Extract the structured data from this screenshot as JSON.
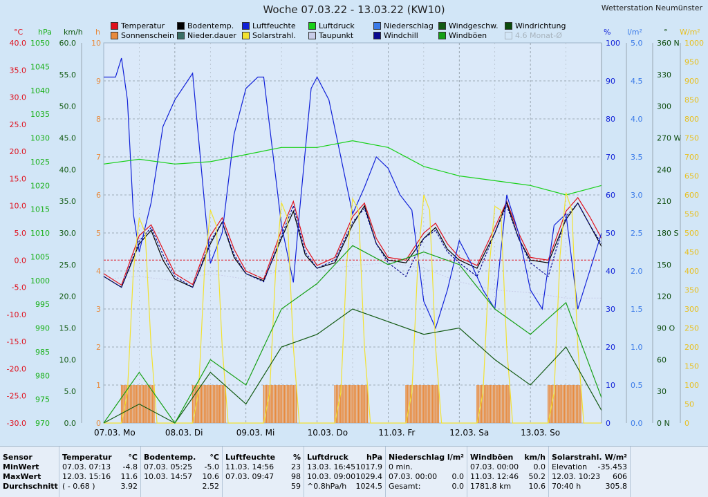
{
  "header": {
    "title": "Woche 07.03.22 - 13.03.22 (KW10)",
    "station": "Wetterstation Neumünster"
  },
  "colors": {
    "temperatur": "#e0101c",
    "sonnenschein": "#e88a3c",
    "bodentemp": "#000000",
    "niederdauer": "#3a6f66",
    "luftfeuchte": "#1020d8",
    "solarstrahl": "#f2e230",
    "luftdruck": "#18d018",
    "taupunkt": "#c8cce8",
    "niederschlag": "#3a7ae8",
    "windchill": "#0a0a90",
    "windgeschw": "#125a12",
    "windboeen": "#16a016",
    "windrichtung": "#0b4a0b"
  },
  "legend": [
    {
      "label": "Temperatur",
      "color": "#e0101c",
      "enabled": true
    },
    {
      "label": "Bodentemp.",
      "color": "#000000",
      "enabled": true
    },
    {
      "label": "Luftfeuchte",
      "color": "#1020d8",
      "enabled": true
    },
    {
      "label": "Luftdruck",
      "color": "#18d018",
      "enabled": true
    },
    {
      "label": "Niederschlag",
      "color": "#3a7ae8",
      "enabled": true
    },
    {
      "label": "Windgeschw.",
      "color": "#125a12",
      "enabled": true
    },
    {
      "label": "Windrichtung",
      "color": "#0b4a0b",
      "enabled": true
    },
    {
      "label": "Sonnenschein",
      "color": "#e88a3c",
      "enabled": true
    },
    {
      "label": "Nieder.dauer",
      "color": "#3a6f66",
      "enabled": true
    },
    {
      "label": "Solarstrahl.",
      "color": "#f2e230",
      "enabled": true
    },
    {
      "label": "Taupunkt",
      "color": "#c8cce8",
      "enabled": true
    },
    {
      "label": "Windchill",
      "color": "#0a0a90",
      "enabled": true
    },
    {
      "label": "Windböen",
      "color": "#16a016",
      "enabled": true
    },
    {
      "label": "4.6 Monat-Ø",
      "color": "#ffffff",
      "enabled": false
    }
  ],
  "chart_data": {
    "type": "line",
    "x_unit": "hours since 07.03.22 00:00",
    "xlim": [
      0,
      168
    ],
    "x_day_labels": [
      "07.03.  Mo",
      "08.03.  Di",
      "09.03.  Mi",
      "10.03.  Do",
      "11.03.  Fr",
      "12.03.  Sa",
      "13.03.  So"
    ],
    "grid": true,
    "axes": {
      "temperature": {
        "unit": "°C",
        "range": [
          -30,
          40
        ],
        "ticks": [
          "40.0",
          "35.0",
          "30.0",
          "25.0",
          "20.0",
          "15.0",
          "10.0",
          "5.0",
          "0.0",
          "-5.0",
          "-10.0",
          "-15.0",
          "-20.0",
          "-25.0",
          "-30.0"
        ]
      },
      "pressure": {
        "unit": "hPa",
        "range": [
          970,
          1050
        ],
        "ticks": [
          "1050",
          "1045",
          "1040",
          "1035",
          "1030",
          "1025",
          "1020",
          "1015",
          "1010",
          "1005",
          "1000",
          "995",
          "990",
          "985",
          "980",
          "975",
          "970"
        ]
      },
      "wind": {
        "unit": "km/h",
        "range": [
          0,
          60
        ],
        "ticks": [
          "60.0",
          "55.0",
          "50.0",
          "45.0",
          "40.0",
          "35.0",
          "30.0",
          "25.0",
          "20.0",
          "15.0",
          "10.0",
          "5.0",
          "0.0"
        ]
      },
      "hours": {
        "unit": "h",
        "range": [
          0,
          10
        ],
        "ticks": [
          "10",
          "9",
          "8",
          "7",
          "6",
          "5",
          "4",
          "3",
          "2",
          "1",
          "0"
        ]
      },
      "humidity": {
        "unit": "%",
        "range": [
          0,
          100
        ],
        "ticks": [
          "100",
          "90",
          "80",
          "70",
          "60",
          "50",
          "40",
          "30",
          "20",
          "10",
          "0"
        ]
      },
      "precip": {
        "unit": "l/m²",
        "range": [
          0,
          5
        ],
        "ticks": [
          "5.0",
          "4.5",
          "4.0",
          "3.5",
          "3.0",
          "2.5",
          "2.0",
          "1.5",
          "1.0",
          "0.5",
          "0.0"
        ]
      },
      "direction": {
        "unit": "°",
        "range": [
          0,
          360
        ],
        "ticks": [
          "360 N",
          "330",
          "300",
          "270 W",
          "240",
          "210",
          "180 S",
          "150",
          "120",
          "90  O",
          "60",
          "30",
          "0  N"
        ]
      },
      "solar": {
        "unit": "W/m²",
        "range": [
          0,
          1000
        ],
        "ticks": [
          "1000",
          "950",
          "900",
          "850",
          "800",
          "750",
          "700",
          "650",
          "600",
          "550",
          "500",
          "450",
          "400",
          "350",
          "300",
          "250",
          "200",
          "150",
          "100",
          "50",
          "0"
        ]
      }
    },
    "series": [
      {
        "name": "Temperatur",
        "axis": "temperature",
        "x": [
          0,
          6,
          12,
          16,
          20,
          24,
          30,
          36,
          40,
          44,
          48,
          54,
          60,
          64,
          68,
          72,
          78,
          84,
          88,
          92,
          96,
          102,
          108,
          112,
          116,
          120,
          126,
          132,
          136,
          140,
          144,
          150,
          156,
          160,
          164,
          168
        ],
        "y": [
          -2.5,
          -4.6,
          4.5,
          6.5,
          2.0,
          -2.5,
          -4.5,
          4.5,
          7.8,
          2.0,
          -2.0,
          -3.5,
          5.5,
          10.8,
          2.5,
          -1.0,
          0.5,
          8.0,
          10.5,
          4.0,
          0.5,
          0.0,
          5.0,
          6.8,
          3.0,
          0.5,
          -1.0,
          6.0,
          10.8,
          5.0,
          0.5,
          0.0,
          9.0,
          11.5,
          8.0,
          4.0
        ]
      },
      {
        "name": "Bodentemp.",
        "axis": "temperature",
        "x": [
          0,
          6,
          12,
          16,
          20,
          24,
          30,
          36,
          40,
          44,
          48,
          54,
          60,
          64,
          68,
          72,
          78,
          84,
          88,
          92,
          96,
          102,
          108,
          112,
          116,
          120,
          126,
          132,
          136,
          140,
          144,
          150,
          156,
          160,
          164,
          168
        ],
        "y": [
          -3.0,
          -5.0,
          3.0,
          5.5,
          0.0,
          -3.5,
          -5.0,
          3.0,
          7.0,
          0.5,
          -2.5,
          -3.8,
          4.0,
          9.0,
          1.0,
          -1.5,
          -0.5,
          6.5,
          10.0,
          3.0,
          0.0,
          -0.5,
          4.0,
          6.0,
          2.0,
          0.0,
          -1.5,
          5.0,
          10.6,
          4.0,
          0.0,
          -0.5,
          7.5,
          10.5,
          6.5,
          2.5
        ]
      },
      {
        "name": "Taupunkt",
        "axis": "temperature",
        "x": [
          0,
          12,
          24,
          36,
          48,
          60,
          72,
          84,
          96,
          108,
          120,
          132,
          144,
          156,
          168
        ],
        "y": [
          -3.5,
          -3.0,
          -3.8,
          -2.5,
          -3.5,
          -2.0,
          -2.0,
          -1.0,
          -0.5,
          -1.5,
          -4.0,
          -5.5,
          -6.0,
          -7.0,
          -7.0
        ]
      },
      {
        "name": "Windchill",
        "axis": "temperature",
        "x": [
          0,
          6,
          12,
          16,
          20,
          24,
          30,
          36,
          40,
          44,
          48,
          54,
          60,
          64,
          68,
          72,
          78,
          84,
          88,
          92,
          96,
          102,
          108,
          112,
          116,
          120,
          126,
          132,
          136,
          140,
          144,
          150,
          156,
          160,
          164,
          168
        ],
        "y": [
          -3.0,
          -5.0,
          3.5,
          6.0,
          1.0,
          -3.0,
          -5.0,
          3.5,
          7.0,
          1.0,
          -2.5,
          -4.0,
          4.5,
          10.0,
          1.5,
          -1.5,
          0.0,
          7.0,
          9.5,
          3.0,
          -0.5,
          -3.0,
          4.0,
          5.5,
          1.5,
          -0.5,
          -3.0,
          5.0,
          10.0,
          4.0,
          -0.5,
          -3.0,
          8.0,
          10.5,
          6.5,
          3.0
        ]
      },
      {
        "name": "Luftfeuchte",
        "axis": "humidity",
        "x": [
          0,
          4,
          6,
          8,
          10,
          12,
          16,
          20,
          24,
          30,
          34,
          36,
          40,
          44,
          48,
          52,
          54,
          56,
          60,
          64,
          66,
          70,
          72,
          76,
          80,
          84,
          88,
          92,
          96,
          100,
          104,
          108,
          112,
          116,
          120,
          124,
          128,
          132,
          136,
          140,
          144,
          148,
          152,
          156,
          160,
          164,
          168
        ],
        "y": [
          91,
          91,
          96,
          85,
          55,
          45,
          58,
          78,
          85,
          92,
          58,
          42,
          50,
          76,
          88,
          91,
          91,
          78,
          52,
          37,
          55,
          88,
          91,
          85,
          70,
          55,
          62,
          70,
          67,
          60,
          56,
          32,
          25,
          35,
          48,
          42,
          35,
          30,
          60,
          50,
          35,
          30,
          52,
          55,
          30,
          40,
          50
        ]
      },
      {
        "name": "Luftdruck",
        "axis": "pressure",
        "x": [
          0,
          12,
          24,
          36,
          48,
          60,
          72,
          84,
          96,
          108,
          120,
          132,
          144,
          156,
          168
        ],
        "y": [
          1024.5,
          1025.5,
          1024.5,
          1025.0,
          1026.5,
          1028.0,
          1028.0,
          1029.4,
          1028.0,
          1024.0,
          1022.0,
          1021.0,
          1020.0,
          1018.0,
          1020.0
        ]
      },
      {
        "name": "Solarstrahl.",
        "axis": "solar",
        "x": [
          0,
          6,
          8,
          10,
          12,
          14,
          16,
          18,
          24,
          30,
          32,
          34,
          36,
          38,
          40,
          42,
          48,
          54,
          56,
          58,
          60,
          62,
          64,
          66,
          72,
          78,
          80,
          82,
          84,
          86,
          88,
          90,
          96,
          102,
          104,
          106,
          108,
          110,
          112,
          114,
          120,
          126,
          128,
          130,
          132,
          134,
          136,
          138,
          144,
          150,
          152,
          154,
          156,
          158,
          160,
          162,
          168
        ],
        "y": [
          0,
          0,
          80,
          400,
          540,
          500,
          200,
          0,
          0,
          0,
          80,
          400,
          560,
          520,
          200,
          0,
          0,
          0,
          80,
          400,
          580,
          540,
          200,
          0,
          0,
          0,
          80,
          420,
          590,
          560,
          200,
          0,
          0,
          0,
          80,
          420,
          600,
          560,
          200,
          0,
          0,
          0,
          80,
          400,
          570,
          560,
          200,
          0,
          0,
          0,
          80,
          440,
          606,
          560,
          200,
          0,
          0
        ]
      },
      {
        "name": "Windgeschw.",
        "axis": "wind",
        "x": [
          0,
          12,
          24,
          36,
          48,
          60,
          72,
          84,
          96,
          108,
          120,
          132,
          144,
          156,
          168
        ],
        "y": [
          0,
          3,
          0,
          8,
          3,
          12,
          14,
          18,
          16,
          14,
          15,
          10,
          6,
          12,
          2
        ]
      },
      {
        "name": "Windböen",
        "axis": "wind",
        "x": [
          0,
          12,
          24,
          36,
          48,
          60,
          72,
          84,
          96,
          108,
          120,
          132,
          144,
          156,
          168
        ],
        "y": [
          0,
          8,
          0,
          10,
          6,
          18,
          22,
          28,
          25,
          27,
          25,
          18,
          14,
          19,
          4
        ]
      },
      {
        "name": "Sonnenschein",
        "axis": "hours",
        "type": "bar",
        "x": [
          6,
          6.5,
          7,
          7.5,
          8,
          8.5,
          9,
          9.5,
          10,
          10.5,
          11,
          11.5,
          12,
          12.5,
          13,
          13.5,
          14,
          14.5,
          15,
          15.5,
          16,
          16.5,
          17
        ],
        "y": [
          1,
          1,
          1,
          1,
          1,
          1,
          1,
          1,
          1,
          1,
          1,
          1,
          1,
          1,
          1,
          1,
          1,
          1,
          1,
          1,
          1,
          1,
          1
        ]
      }
    ],
    "reference_line": {
      "axis": "temperature",
      "value": 0.0
    }
  },
  "stats": {
    "sensor": {
      "title": "Sensor",
      "rows": [
        "MinWert",
        "MaxWert",
        "Durchschnitt"
      ]
    },
    "columns": [
      {
        "title": "Temperatur",
        "unit": "°C",
        "rows": [
          {
            "label": "07.03.  07:13",
            "value": "-4.8"
          },
          {
            "label": "12.03.  15:16",
            "value": "11.6"
          },
          {
            "label": "( - 0.68 )",
            "value": "3.92"
          }
        ]
      },
      {
        "title": "Bodentemp.",
        "unit": "°C",
        "rows": [
          {
            "label": "07.03.  05:25",
            "value": "-5.0"
          },
          {
            "label": "10.03.  14:57",
            "value": "10.6"
          },
          {
            "label": "",
            "value": "2.52"
          }
        ]
      },
      {
        "title": "Luftfeuchte",
        "unit": "%",
        "rows": [
          {
            "label": "11.03.  14:56",
            "value": "23"
          },
          {
            "label": "07.03.  09:47",
            "value": "98"
          },
          {
            "label": "",
            "value": "59"
          }
        ]
      },
      {
        "title": "Luftdruck",
        "unit": "hPa",
        "rows": [
          {
            "label": "13.03.  16:45",
            "value": "1017.9"
          },
          {
            "label": "10.03.  09:00",
            "value": "1029.4"
          },
          {
            "label": "^0.8hPa/h",
            "value": "1024.5"
          }
        ]
      },
      {
        "title": "Niederschlag",
        "unit": "l/m²",
        "rows": [
          {
            "label": "0 min.",
            "value": ""
          },
          {
            "label": "07.03.  00:00",
            "value": "0.0"
          },
          {
            "label": "Gesamt:",
            "value": "0.0"
          }
        ]
      },
      {
        "title": "Windböen",
        "unit": "km/h",
        "rows": [
          {
            "label": "07.03.  00:00",
            "value": "0.0"
          },
          {
            "label": "11.03.  12:46",
            "value": "50.2"
          },
          {
            "label": "1781.8 km",
            "value": "10.6"
          }
        ]
      },
      {
        "title": "Solarstrahl.",
        "unit": "W/m²",
        "rows": [
          {
            "label": "Elevation",
            "value": "-35.453"
          },
          {
            "label": "12.03.  10:23",
            "value": "606"
          },
          {
            "label": "70:40 h",
            "value": "305.8"
          }
        ]
      }
    ]
  }
}
